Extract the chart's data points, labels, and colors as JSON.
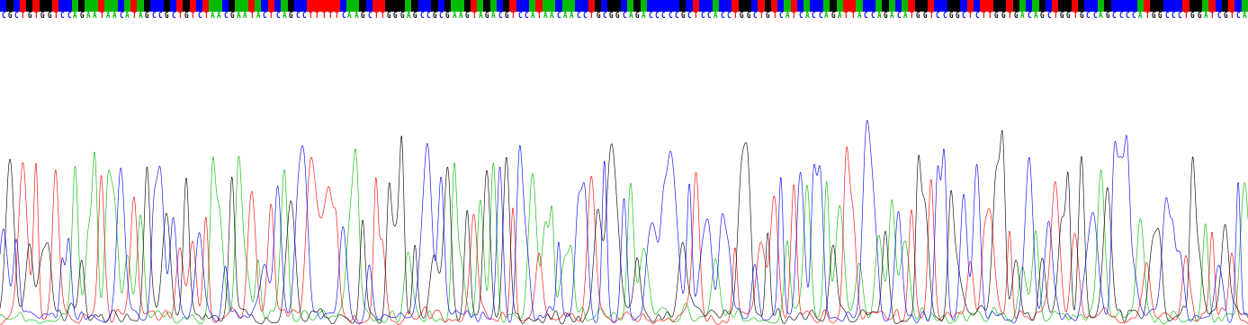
{
  "sequence": "CGCTGTGGTCCAGAATAACATAGCCGCTGTCTAACGAATACTCAGCCTTTTTCAAGCTTGGGAGCCGCGAAGTAGACGTCCATAACAACCTGCGGCAGACCCCCGCTCCACCTGGCTGTCATCACCAGATTACCAGACATGGTCCGGCTCTTGGTGACAGCTGGTGCCAGCCCCATGGCCCTGGATCGTCA",
  "base_colors": {
    "A": "#00bb00",
    "T": "#ff0000",
    "G": "#000000",
    "C": "#0000ff"
  },
  "background_color": "#ffffff",
  "figsize": [
    13.87,
    3.62
  ],
  "dpi": 100,
  "n_points": 5000,
  "seed": 42
}
